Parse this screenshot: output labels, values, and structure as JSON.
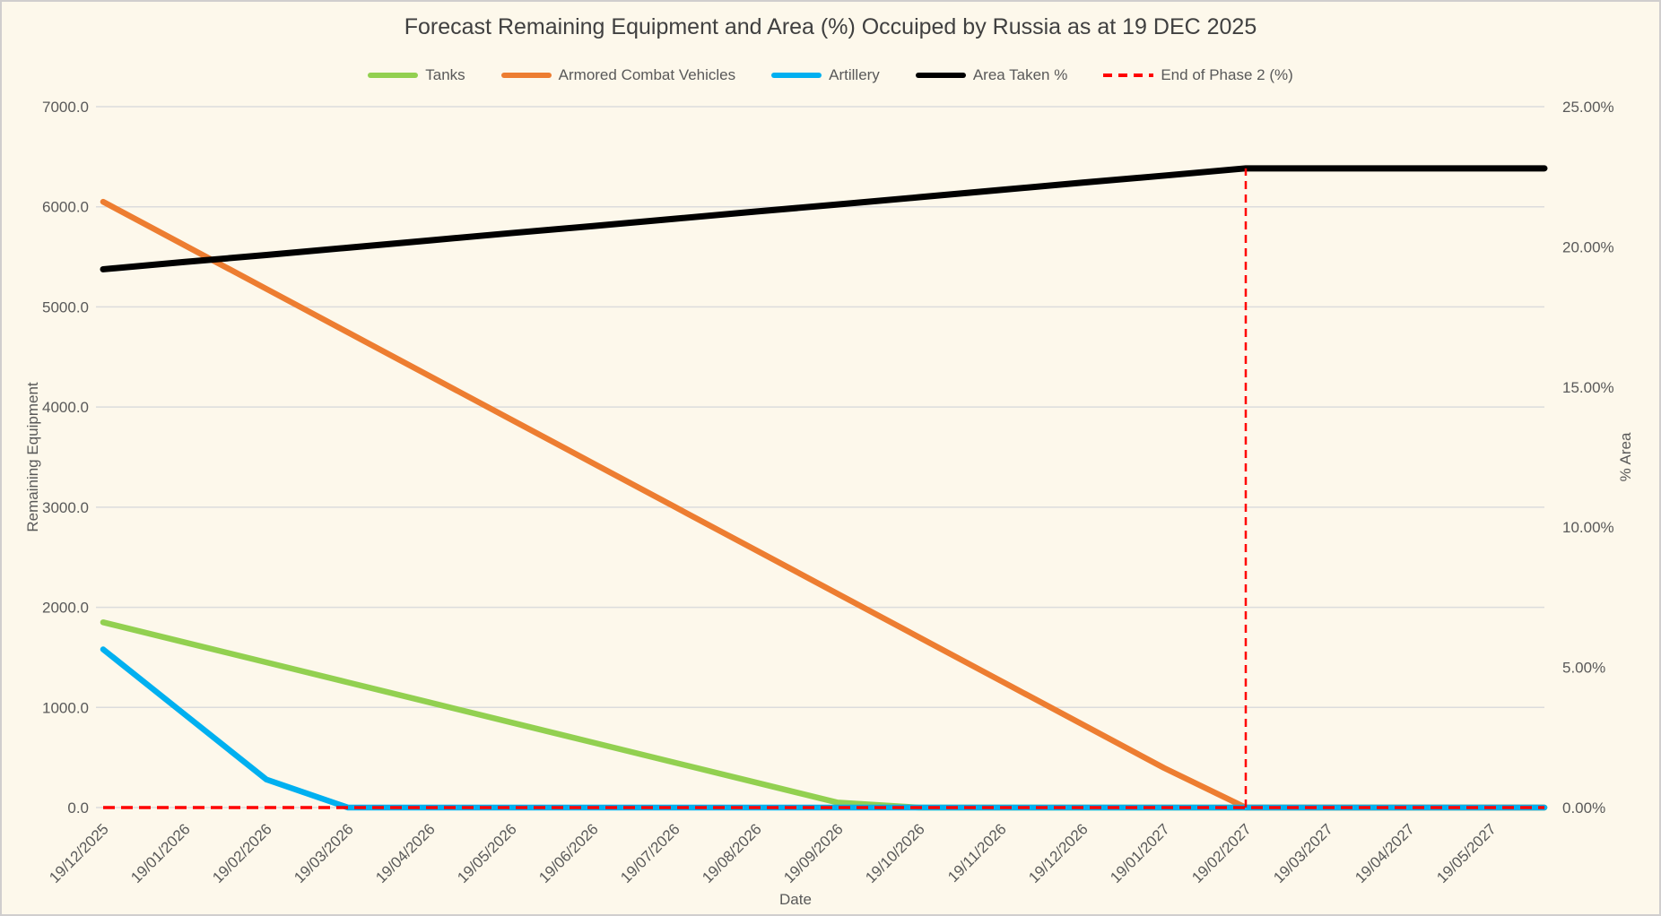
{
  "chart_data": {
    "type": "line",
    "title": "Forecast Remaining Equipment and Area (%) Occuiped by Russia as at 19 DEC 2025",
    "xlabel": "Date",
    "ylabel_left": "Remaining Equipment",
    "ylabel_right": "% Area",
    "legend_position": "top",
    "grid": "horizontal",
    "categories": [
      "19/12/2025",
      "19/01/2026",
      "19/02/2026",
      "19/03/2026",
      "19/04/2026",
      "19/05/2026",
      "19/06/2026",
      "19/07/2026",
      "19/08/2026",
      "19/09/2026",
      "19/10/2026",
      "19/11/2026",
      "19/12/2026",
      "19/01/2027",
      "19/02/2027",
      "19/03/2027",
      "19/04/2027",
      "19/05/2027"
    ],
    "left_axis": {
      "min": 0,
      "max": 7000,
      "step": 1000,
      "tick_labels": [
        "0.0",
        "1000.0",
        "2000.0",
        "3000.0",
        "4000.0",
        "5000.0",
        "6000.0",
        "7000.0"
      ]
    },
    "right_axis": {
      "min": 0,
      "max": 25,
      "step": 5,
      "tick_labels": [
        "0.00%",
        "5.00%",
        "10.00%",
        "15.00%",
        "20.00%",
        "25.00%"
      ]
    },
    "series": [
      {
        "name": "Tanks",
        "axis": "left",
        "color": "#92D050",
        "line_style": "solid",
        "values": [
          1850,
          1650,
          1450,
          1250,
          1050,
          850,
          650,
          450,
          250,
          50,
          0,
          0,
          0,
          0,
          0,
          0,
          0,
          0
        ]
      },
      {
        "name": "Armored Combat Vehicles",
        "axis": "left",
        "color": "#ED7D31",
        "line_style": "solid",
        "values": [
          6050,
          5615,
          5180,
          4745,
          4310,
          3875,
          3440,
          3005,
          2570,
          2135,
          1700,
          1265,
          830,
          395,
          0,
          0,
          0,
          0
        ]
      },
      {
        "name": "Artillery",
        "axis": "left",
        "color": "#00B0F0",
        "line_style": "solid",
        "values": [
          1580,
          930,
          280,
          0,
          0,
          0,
          0,
          0,
          0,
          0,
          0,
          0,
          0,
          0,
          0,
          0,
          0,
          0
        ]
      },
      {
        "name": "Area Taken %",
        "axis": "right",
        "color": "#000000",
        "line_style": "solid",
        "values": [
          19.2,
          19.46,
          19.71,
          19.97,
          20.23,
          20.49,
          20.74,
          21.0,
          21.26,
          21.51,
          21.77,
          22.03,
          22.29,
          22.54,
          22.8,
          22.8,
          22.8,
          22.8
        ]
      },
      {
        "name": "End of Phase 2 (%)",
        "axis": "right",
        "color": "#FF0000",
        "line_style": "dashed",
        "values": [
          0,
          0,
          0,
          0,
          0,
          0,
          0,
          0,
          0,
          0,
          0,
          0,
          0,
          0,
          0,
          0,
          0,
          0
        ],
        "vertical_line": {
          "at": "19/02/2027",
          "from": 0,
          "to": 22.8
        }
      }
    ],
    "style": {
      "background": "#FDF8EB",
      "border": "#D0CECE",
      "gridline": "#DCDCDC",
      "axis_text": "#595959",
      "title_text": "#404040"
    }
  }
}
